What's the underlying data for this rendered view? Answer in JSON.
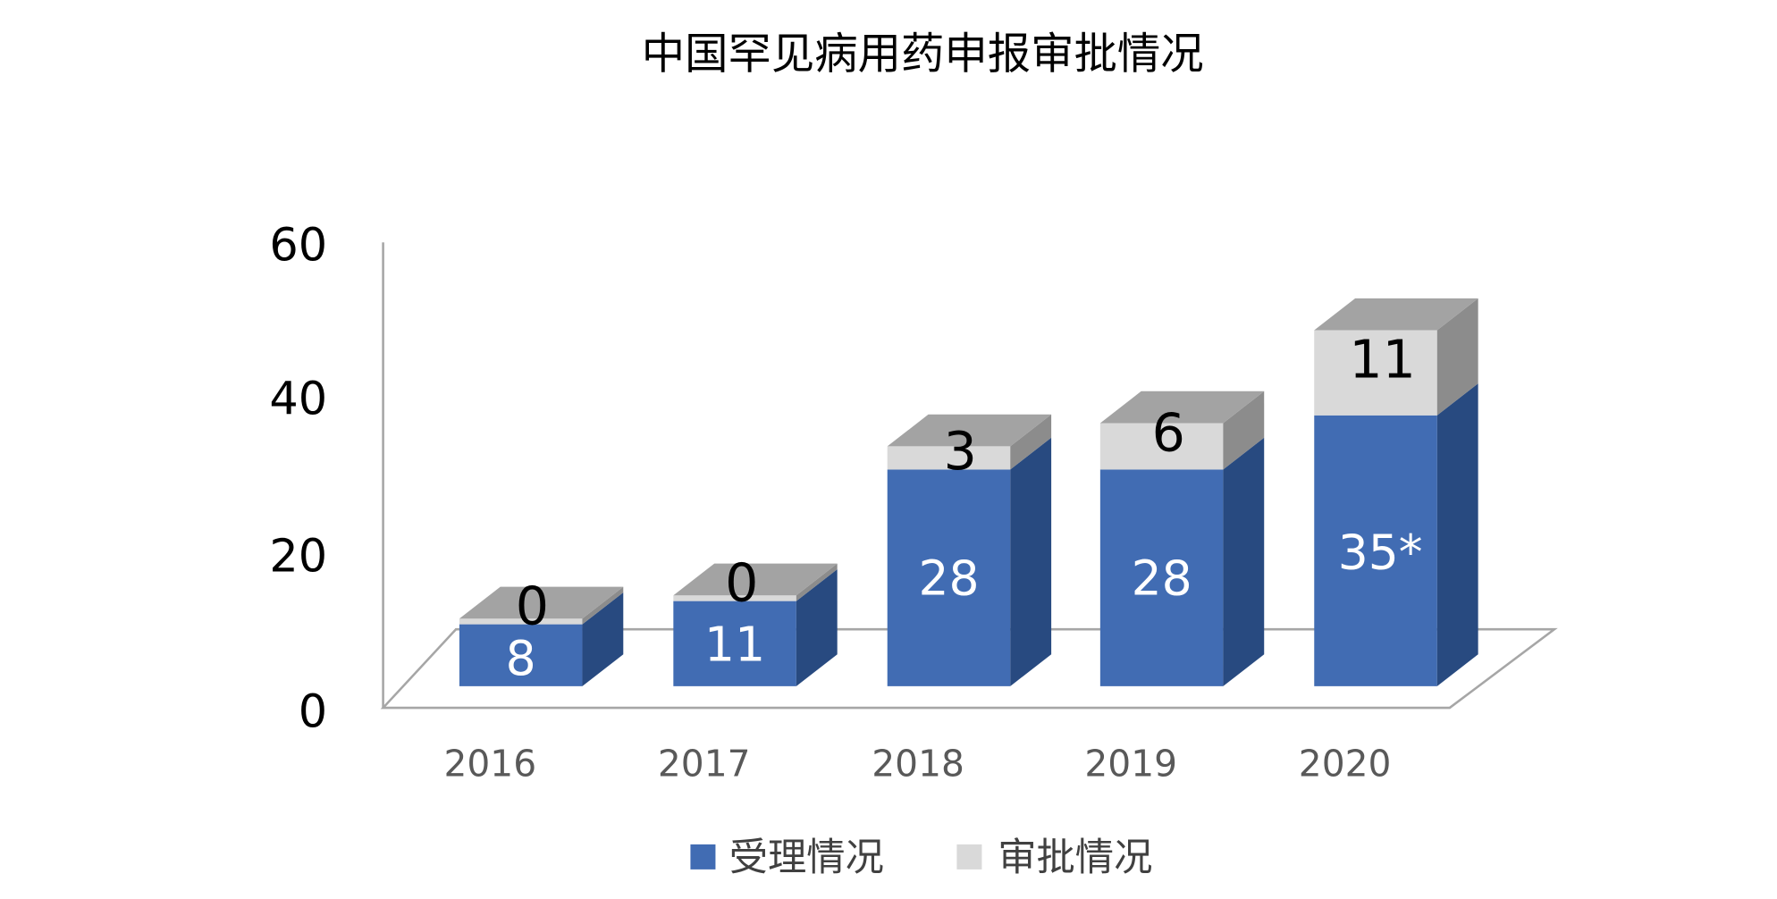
{
  "chart_data": {
    "type": "bar",
    "stacked": true,
    "three_d": true,
    "title": "中国罕见病用药申报审批情况",
    "categories": [
      "2016",
      "2017",
      "2018",
      "2019",
      "2020"
    ],
    "series": [
      {
        "name": "受理情况",
        "values": [
          8,
          11,
          28,
          28,
          35
        ],
        "labels": [
          "8",
          "11",
          "28",
          "28",
          "35*"
        ],
        "color": "#416CB3"
      },
      {
        "name": "审批情况",
        "values": [
          0,
          0,
          3,
          6,
          11
        ],
        "labels": [
          "0",
          "0",
          "3",
          "6",
          "11"
        ],
        "color": "#D9D9D9"
      }
    ],
    "yticks": [
      "0",
      "20",
      "40",
      "60"
    ],
    "ylim": [
      0,
      60
    ],
    "grid": false,
    "legend": "bottom"
  }
}
